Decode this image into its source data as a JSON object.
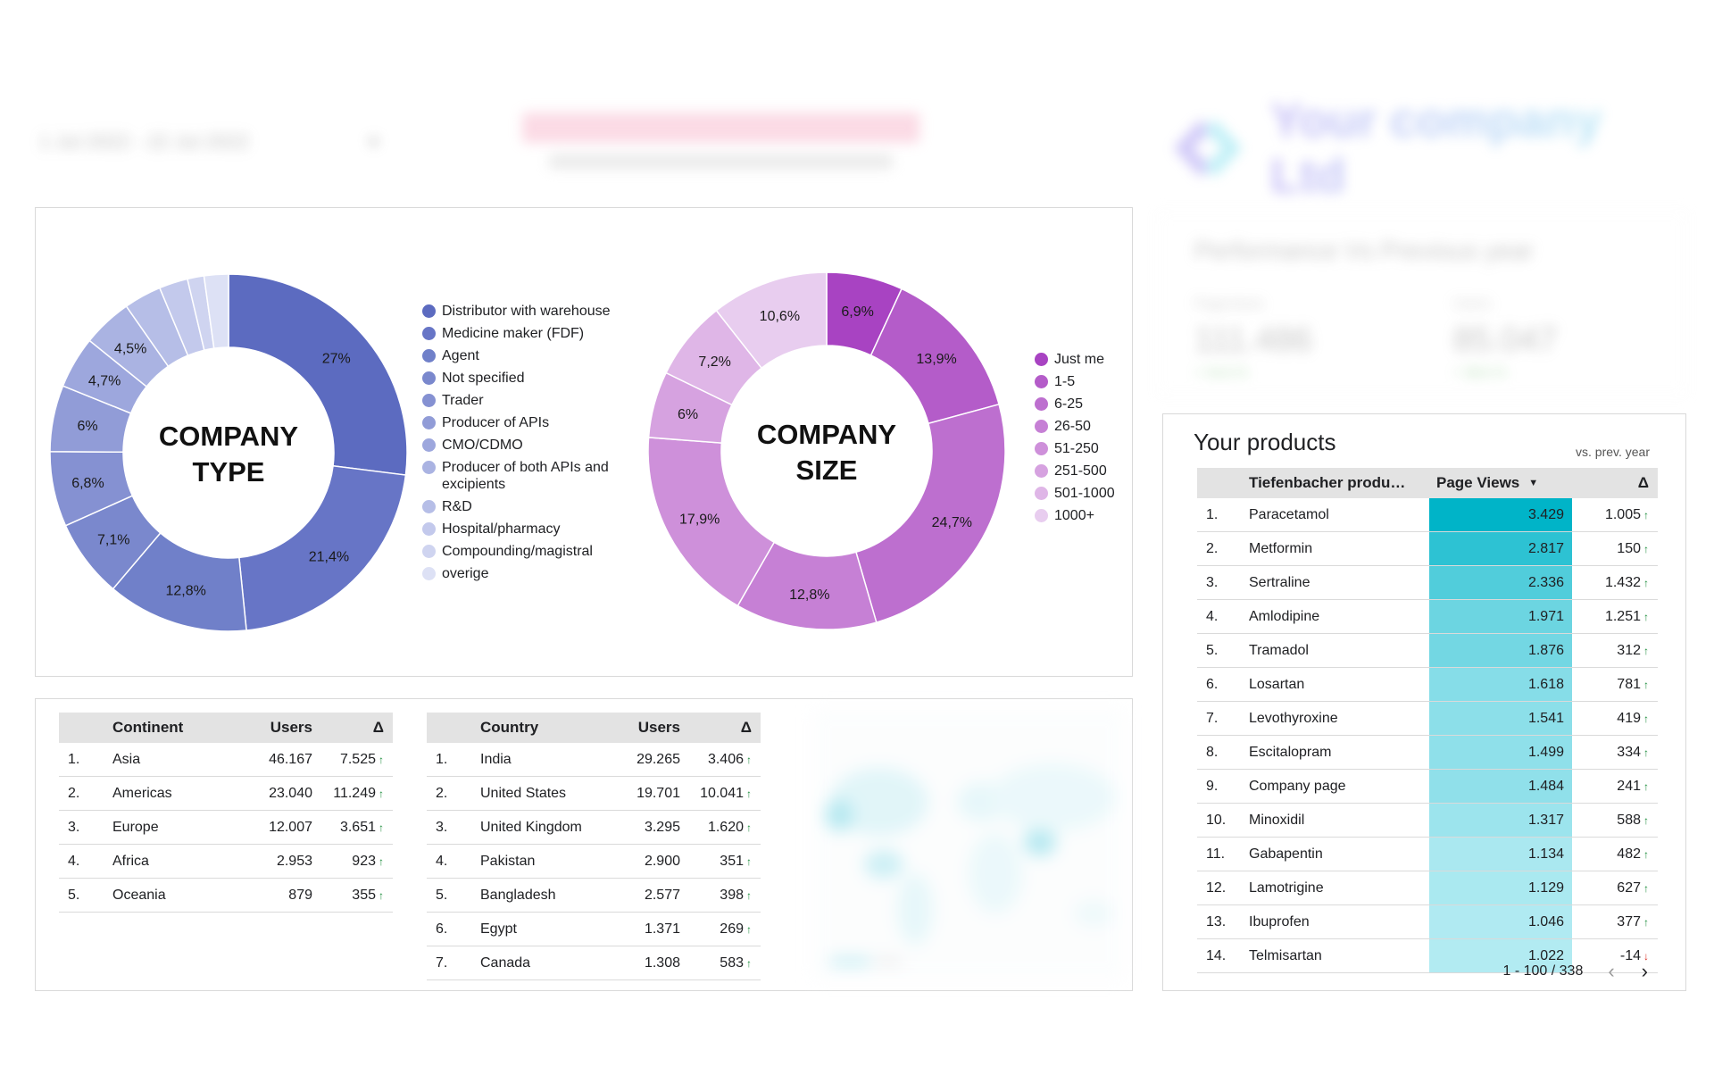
{
  "colors": {
    "company_type_shades": [
      "#5c6bc0",
      "#6775c6",
      "#7080c9",
      "#7a88cd",
      "#8591d2",
      "#919cd7",
      "#9da7dd",
      "#aab3e2",
      "#b6bee7",
      "#c3c9ec",
      "#cfd4f0",
      "#dde1f5"
    ],
    "company_size_shades": [
      "#a843c2",
      "#b45cc9",
      "#bd6fcf",
      "#c680d5",
      "#ce90da",
      "#d6a2e0",
      "#dfb6e7",
      "#e8cdef"
    ],
    "views_bar_max": "#00b4c8",
    "views_bar_min": "#b2ebf2",
    "header_row": "#e3e3e3"
  },
  "header": {
    "date_range": "1 Jul 2022 - 22 Jul 2022",
    "logo_text": "Your company Ltd"
  },
  "performance": {
    "title": "Performance Vs Previous year",
    "metrics": [
      {
        "label": "Pageviews",
        "value": "111.486",
        "change": "+ 44,6 %"
      },
      {
        "label": "Users",
        "value": "85.047",
        "change": "+ 38,6 %"
      }
    ]
  },
  "chart_data": [
    {
      "type": "pie",
      "title": "COMPANY TYPE",
      "title_lines": [
        "COMPANY",
        "TYPE"
      ],
      "donut": true,
      "legend_position": "right",
      "categories": [
        "Distributor with warehouse",
        "Medicine maker (FDF)",
        "Agent",
        "Not specified",
        "Trader",
        "Producer of APIs",
        "CMO/CDMO",
        "Producer of both APIs and excipients",
        "R&D",
        "Hospital/pharmacy",
        "Compounding/magistral",
        "overige"
      ],
      "values": [
        27,
        21.4,
        12.8,
        7.1,
        6.8,
        6,
        4.7,
        4.5,
        3.4,
        2.6,
        1.5,
        2.2
      ],
      "data_labels": [
        "27%",
        "21,4%",
        "12,8%",
        "7,1%",
        "6,8%",
        "6%",
        "4,7%",
        "4,5%",
        "",
        "",
        "",
        ""
      ]
    },
    {
      "type": "pie",
      "title": "COMPANY SIZE",
      "title_lines": [
        "COMPANY",
        "SIZE"
      ],
      "donut": true,
      "legend_position": "right",
      "categories": [
        "Just me",
        "1-5",
        "6-25",
        "26-50",
        "51-250",
        "251-500",
        "501-1000",
        "1000+"
      ],
      "values": [
        6.9,
        13.9,
        24.7,
        12.8,
        17.9,
        6,
        7.2,
        10.6
      ],
      "data_labels": [
        "6,9%",
        "13,9%",
        "24,7%",
        "12,8%",
        "17,9%",
        "6%",
        "7,2%",
        "10,6%"
      ]
    }
  ],
  "continent_table": {
    "headers": {
      "name": "Continent",
      "users": "Users",
      "delta": "Δ"
    },
    "rows": [
      {
        "num": "1.",
        "name": "Asia",
        "users": "46.167",
        "delta": "7.525",
        "up": true
      },
      {
        "num": "2.",
        "name": "Americas",
        "users": "23.040",
        "delta": "11.249",
        "up": true
      },
      {
        "num": "3.",
        "name": "Europe",
        "users": "12.007",
        "delta": "3.651",
        "up": true
      },
      {
        "num": "4.",
        "name": "Africa",
        "users": "2.953",
        "delta": "923",
        "up": true
      },
      {
        "num": "5.",
        "name": "Oceania",
        "users": "879",
        "delta": "355",
        "up": true
      }
    ]
  },
  "country_table": {
    "headers": {
      "name": "Country",
      "users": "Users",
      "delta": "Δ"
    },
    "rows": [
      {
        "num": "1.",
        "name": "India",
        "users": "29.265",
        "delta": "3.406",
        "up": true
      },
      {
        "num": "2.",
        "name": "United States",
        "users": "19.701",
        "delta": "10.041",
        "up": true
      },
      {
        "num": "3.",
        "name": "United Kingdom",
        "users": "3.295",
        "delta": "1.620",
        "up": true
      },
      {
        "num": "4.",
        "name": "Pakistan",
        "users": "2.900",
        "delta": "351",
        "up": true
      },
      {
        "num": "5.",
        "name": "Bangladesh",
        "users": "2.577",
        "delta": "398",
        "up": true
      },
      {
        "num": "6.",
        "name": "Egypt",
        "users": "1.371",
        "delta": "269",
        "up": true
      },
      {
        "num": "7.",
        "name": "Canada",
        "users": "1.308",
        "delta": "583",
        "up": true
      }
    ]
  },
  "products": {
    "title": "Your products",
    "subtitle": "vs. prev. year",
    "headers": {
      "name": "Tiefenbacher produ…",
      "views": "Page Views",
      "delta": "Δ"
    },
    "rows": [
      {
        "num": "1.",
        "name": "Paracetamol",
        "views": "3.429",
        "views_value": 3429,
        "delta": "1.005",
        "up": true
      },
      {
        "num": "2.",
        "name": "Metformin",
        "views": "2.817",
        "views_value": 2817,
        "delta": "150",
        "up": true
      },
      {
        "num": "3.",
        "name": "Sertraline",
        "views": "2.336",
        "views_value": 2336,
        "delta": "1.432",
        "up": true
      },
      {
        "num": "4.",
        "name": "Amlodipine",
        "views": "1.971",
        "views_value": 1971,
        "delta": "1.251",
        "up": true
      },
      {
        "num": "5.",
        "name": "Tramadol",
        "views": "1.876",
        "views_value": 1876,
        "delta": "312",
        "up": true
      },
      {
        "num": "6.",
        "name": "Losartan",
        "views": "1.618",
        "views_value": 1618,
        "delta": "781",
        "up": true
      },
      {
        "num": "7.",
        "name": "Levothyroxine",
        "views": "1.541",
        "views_value": 1541,
        "delta": "419",
        "up": true
      },
      {
        "num": "8.",
        "name": "Escitalopram",
        "views": "1.499",
        "views_value": 1499,
        "delta": "334",
        "up": true
      },
      {
        "num": "9.",
        "name": "Company page",
        "views": "1.484",
        "views_value": 1484,
        "delta": "241",
        "up": true
      },
      {
        "num": "10.",
        "name": "Minoxidil",
        "views": "1.317",
        "views_value": 1317,
        "delta": "588",
        "up": true
      },
      {
        "num": "11.",
        "name": "Gabapentin",
        "views": "1.134",
        "views_value": 1134,
        "delta": "482",
        "up": true
      },
      {
        "num": "12.",
        "name": "Lamotrigine",
        "views": "1.129",
        "views_value": 1129,
        "delta": "627",
        "up": true
      },
      {
        "num": "13.",
        "name": "Ibuprofen",
        "views": "1.046",
        "views_value": 1046,
        "delta": "377",
        "up": true
      },
      {
        "num": "14.",
        "name": "Telmisartan",
        "views": "1.022",
        "views_value": 1022,
        "delta": "-14",
        "up": false
      }
    ],
    "pager": "1 - 100 / 338"
  }
}
